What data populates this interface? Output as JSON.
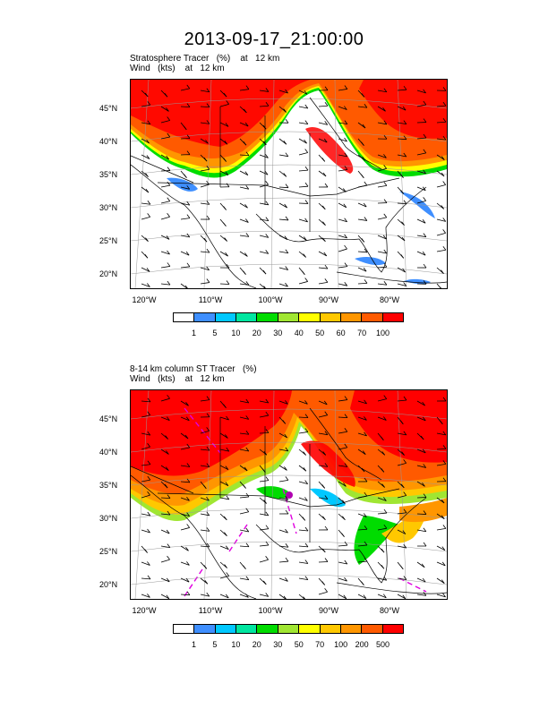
{
  "title": "2013-09-17_21:00:00",
  "panel1": {
    "subtitle_line1": "Stratosphere Tracer   (%)    at   12 km",
    "subtitle_line2": "Wind   (kts)    at   12 km",
    "colorbar_labels": [
      "1",
      "5",
      "10",
      "20",
      "30",
      "40",
      "50",
      "60",
      "70",
      "100"
    ]
  },
  "panel2": {
    "subtitle_line1": "8-14 km column ST Tracer   (%)",
    "subtitle_line2": "Wind   (kts)    at   12 km",
    "colorbar_labels": [
      "1",
      "5",
      "10",
      "20",
      "30",
      "50",
      "70",
      "100",
      "200",
      "500"
    ]
  },
  "axes": {
    "lat_labels": [
      "45°N",
      "40°N",
      "35°N",
      "30°N",
      "25°N",
      "20°N"
    ],
    "lon_labels": [
      "120°W",
      "110°W",
      "100°W",
      "90°W",
      "80°W"
    ]
  },
  "colors": {
    "colorbar": [
      "#ffffff",
      "#3f8fff",
      "#00c8ff",
      "#00e6a0",
      "#00dc00",
      "#a0e632",
      "#ffff00",
      "#ffc800",
      "#ff9600",
      "#ff5a00",
      "#ff0000"
    ]
  }
}
